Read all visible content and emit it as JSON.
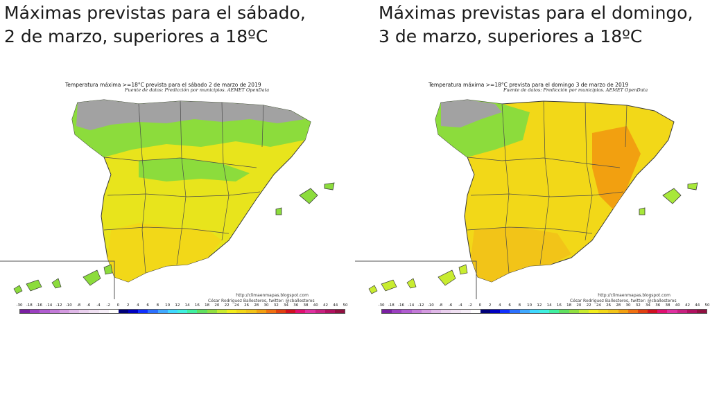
{
  "panels": [
    {
      "heading_line1": "Máximas previstas para el sábado,",
      "heading_line2": "2 de marzo, superiores a 18ºC",
      "map_title": "Temperatura máxima >=18°C prevista para el sábado 2 de marzo de 2019",
      "map_subtitle": "Fuente de datos: Predicción por municipios. AEMET OpenData",
      "credit_url": "http://climaenmapas.blogspot.com",
      "credit_author": "César Rodríguez Ballesteros, twitter: @cballesteros",
      "dominant_colors": [
        "#f2ee1c",
        "#7fe03a",
        "#a0a0a0"
      ]
    },
    {
      "heading_line1": "Máximas previstas para el domingo,",
      "heading_line2": "3 de marzo, superiores a 18ºC",
      "map_title": "Temperatura máxima >=18°C prevista para el domingo 3 de marzo de 2019",
      "map_subtitle": "Fuente de datos: Predicción por municipios. AEMET OpenData",
      "credit_url": "http://climaenmapas.blogspot.com",
      "credit_author": "César Rodríguez Ballesteros, twitter: @cballesteros",
      "dominant_colors": [
        "#f2ee1c",
        "#f2c418",
        "#a0a0a0"
      ]
    }
  ],
  "legend": {
    "ticks": [
      "-30",
      "-18",
      "-16",
      "-14",
      "-12",
      "-10",
      "-8",
      "-6",
      "-4",
      "-2",
      "0",
      "2",
      "4",
      "6",
      "8",
      "10",
      "12",
      "14",
      "16",
      "18",
      "20",
      "22",
      "24",
      "26",
      "28",
      "30",
      "32",
      "34",
      "36",
      "38",
      "40",
      "42",
      "44",
      "50"
    ],
    "colors": [
      "#7a1fa2",
      "#9b3fc0",
      "#b05cd0",
      "#c37ad8",
      "#d49ae0",
      "#e0b8e8",
      "#ead0ee",
      "#f0e0f2",
      "#f6eef8",
      "#ffffff",
      "#00007a",
      "#0000c0",
      "#1030ff",
      "#2c70ff",
      "#40a8ff",
      "#40d8ff",
      "#40f0e0",
      "#40f0a0",
      "#60e060",
      "#90e040",
      "#c8ec30",
      "#f2ee1c",
      "#f2d818",
      "#f2c418",
      "#f2a010",
      "#f07010",
      "#e04010",
      "#d01020",
      "#e01070",
      "#e030a0",
      "#c82080",
      "#b01060",
      "#901040"
    ]
  }
}
